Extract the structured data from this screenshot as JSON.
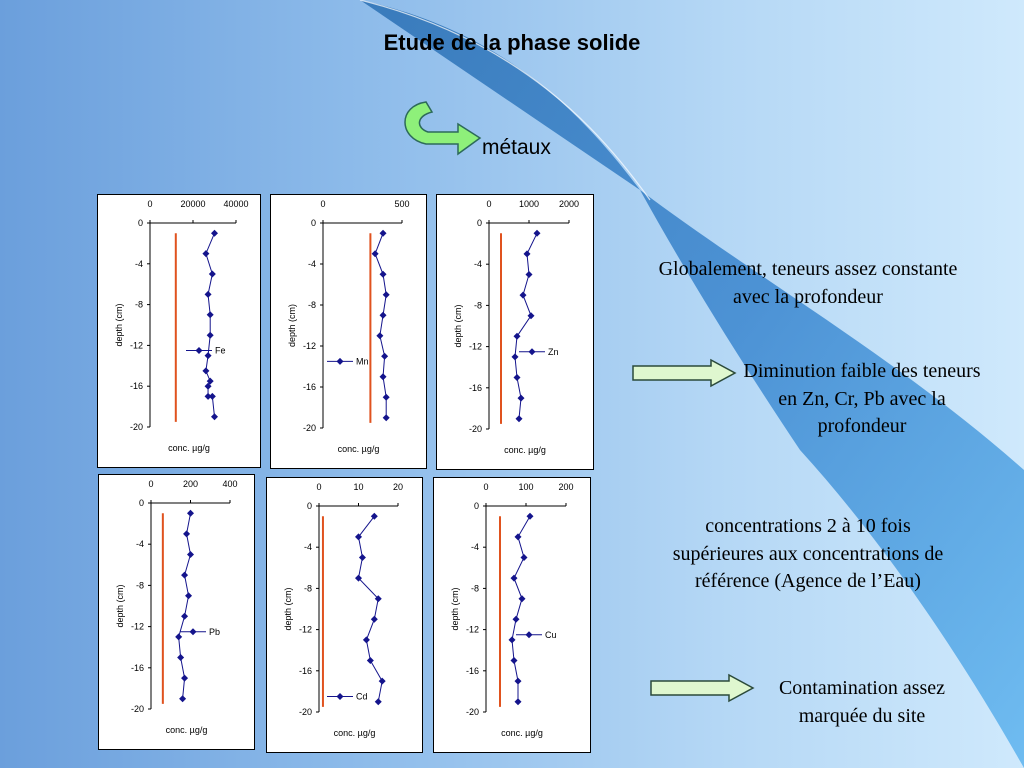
{
  "slide": {
    "title": "Etude de la phase solide",
    "subtitle": "métaux",
    "texts": [
      "Globalement, teneurs assez constante avec la profondeur",
      "Diminution faible des teneurs en Zn, Cr, Pb avec la profondeur",
      "concentrations 2 à 10 fois supérieures aux concentrations de référence (Agence de l’Eau)",
      "Contamination assez marquée du site"
    ]
  },
  "colors": {
    "series": "#14148c",
    "reference_line": "#e0521e"
  },
  "chart_data": [
    {
      "type": "line",
      "series_name": "Fe",
      "x_ticks": [
        "0",
        "20000",
        "40000"
      ],
      "xlim": [
        0,
        40000
      ],
      "y_ticks": [
        "0",
        "-4",
        "-8",
        "-12",
        "-16",
        "-20"
      ],
      "ylim": [
        -20,
        0
      ],
      "xlabel": "conc. µg/g",
      "ylabel": "depth (cm)",
      "x": [
        30000,
        26000,
        29000,
        27000,
        28000,
        28000,
        27000,
        26000,
        28000,
        27000,
        27000,
        29000,
        30000
      ],
      "y": [
        -1,
        -3,
        -5,
        -7,
        -9,
        -11,
        -13,
        -14.5,
        -15.5,
        -16,
        -17,
        -17,
        -19
      ],
      "reference": 12000,
      "legend": "right"
    },
    {
      "type": "line",
      "series_name": "Mn",
      "x_ticks": [
        "0",
        "500"
      ],
      "xlim": [
        0,
        500
      ],
      "y_ticks": [
        "0",
        "-4",
        "-8",
        "-12",
        "-16",
        "-20"
      ],
      "ylim": [
        -20,
        0
      ],
      "xlabel": "conc. µg/g",
      "ylabel": "depth (cm)",
      "x": [
        380,
        330,
        380,
        400,
        380,
        360,
        390,
        380,
        400,
        400
      ],
      "y": [
        -1,
        -3,
        -5,
        -7,
        -9,
        -11,
        -13,
        -15,
        -17,
        -19
      ],
      "reference": 300,
      "legend": "left"
    },
    {
      "type": "line",
      "series_name": "Zn",
      "x_ticks": [
        "0",
        "1000",
        "2000"
      ],
      "xlim": [
        0,
        2000
      ],
      "y_ticks": [
        "0",
        "-4",
        "-8",
        "-12",
        "-16",
        "-20"
      ],
      "ylim": [
        -20,
        0
      ],
      "xlabel": "conc. µg/g",
      "ylabel": "depth (cm)",
      "x": [
        1200,
        950,
        1000,
        850,
        1050,
        700,
        650,
        700,
        800,
        750
      ],
      "y": [
        -1,
        -3,
        -5,
        -7,
        -9,
        -11,
        -13,
        -15,
        -17,
        -19
      ],
      "reference": 300,
      "legend": "right"
    },
    {
      "type": "line",
      "series_name": "Pb",
      "x_ticks": [
        "0",
        "200",
        "400"
      ],
      "xlim": [
        0,
        400
      ],
      "y_ticks": [
        "0",
        "-4",
        "-8",
        "-12",
        "-16",
        "-20"
      ],
      "ylim": [
        -20,
        0
      ],
      "xlabel": "conc. µg/g",
      "ylabel": "depth (cm)",
      "x": [
        200,
        180,
        200,
        170,
        190,
        170,
        140,
        150,
        170,
        160
      ],
      "y": [
        -1,
        -3,
        -5,
        -7,
        -9,
        -11,
        -13,
        -15,
        -17,
        -19
      ],
      "reference": 60,
      "legend": "right"
    },
    {
      "type": "line",
      "series_name": "Cd",
      "x_ticks": [
        "0",
        "10",
        "20"
      ],
      "xlim": [
        0,
        20
      ],
      "y_ticks": [
        "0",
        "-4",
        "-8",
        "-12",
        "-16",
        "-20"
      ],
      "ylim": [
        -20,
        0
      ],
      "xlabel": "conc. µg/g",
      "ylabel": "depth (cm)",
      "x": [
        14,
        10,
        11,
        10,
        15,
        14,
        12,
        13,
        16,
        15
      ],
      "y": [
        -1,
        -3,
        -5,
        -7,
        -9,
        -11,
        -13,
        -15,
        -17,
        -19
      ],
      "reference": 1,
      "legend": "bottom-left"
    },
    {
      "type": "line",
      "series_name": "Cu",
      "x_ticks": [
        "0",
        "100",
        "200"
      ],
      "xlim": [
        0,
        200
      ],
      "y_ticks": [
        "0",
        "-4",
        "-8",
        "-12",
        "-16",
        "-20"
      ],
      "ylim": [
        -20,
        0
      ],
      "xlabel": "conc. µg/g",
      "ylabel": "depth (cm)",
      "x": [
        110,
        80,
        95,
        70,
        90,
        75,
        65,
        70,
        80,
        80
      ],
      "y": [
        -1,
        -3,
        -5,
        -7,
        -9,
        -11,
        -13,
        -15,
        -17,
        -19
      ],
      "reference": 35,
      "legend": "right"
    }
  ]
}
